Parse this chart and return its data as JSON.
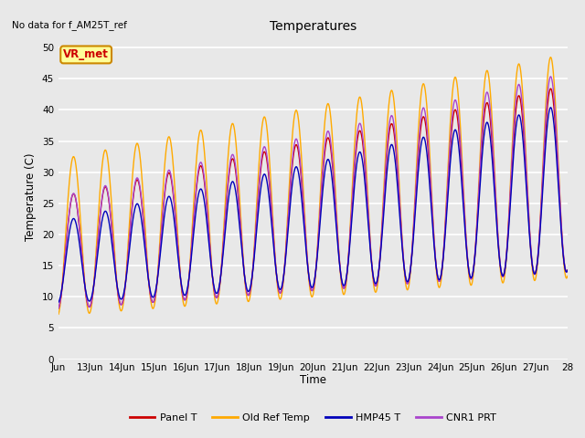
{
  "title": "Temperatures",
  "xlabel": "Time",
  "ylabel": "Temperature (C)",
  "xlim_days": [
    12,
    28
  ],
  "ylim": [
    0,
    52
  ],
  "yticks": [
    0,
    5,
    10,
    15,
    20,
    25,
    30,
    35,
    40,
    45,
    50
  ],
  "xtick_labels": [
    "Jun",
    "13Jun",
    "14Jun",
    "15Jun",
    "16Jun",
    "17Jun",
    "18Jun",
    "19Jun",
    "20Jun",
    "21Jun",
    "22Jun",
    "23Jun",
    "24Jun",
    "25Jun",
    "26Jun",
    "27Jun",
    "28"
  ],
  "xtick_days": [
    12,
    13,
    14,
    15,
    16,
    17,
    18,
    19,
    20,
    21,
    22,
    23,
    24,
    25,
    26,
    27,
    28
  ],
  "annotation_text": "VR_met",
  "no_data_text": "No data for f_AM25T_ref",
  "legend": [
    "Panel T",
    "Old Ref Temp",
    "HMP45 T",
    "CNR1 PRT"
  ],
  "line_colors": [
    "#cc0000",
    "#ffaa00",
    "#0000bb",
    "#aa44cc"
  ],
  "bg_color": "#e8e8e8",
  "plot_bg": "#e8e8e8",
  "grid_color": "#ffffff",
  "annotation_bg": "#ffff99",
  "annotation_border": "#cc8800",
  "annotation_text_color": "#cc0000"
}
